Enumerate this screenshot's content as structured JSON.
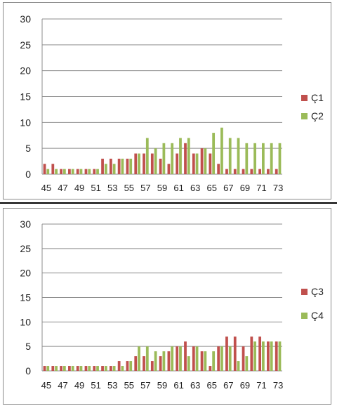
{
  "chart_data": [
    {
      "type": "bar",
      "x": [
        45,
        46,
        47,
        48,
        49,
        50,
        51,
        52,
        53,
        54,
        55,
        56,
        57,
        58,
        59,
        60,
        61,
        62,
        63,
        64,
        65,
        66,
        67,
        68,
        69,
        70,
        71,
        72,
        73
      ],
      "xtick_labels": [
        "45",
        "47",
        "49",
        "51",
        "53",
        "55",
        "57",
        "59",
        "61",
        "63",
        "65",
        "67",
        "69",
        "71",
        "73"
      ],
      "ylim": [
        0,
        30
      ],
      "yticks": [
        0,
        5,
        10,
        15,
        20,
        25,
        30
      ],
      "grid": true,
      "legend_position": "right",
      "series": [
        {
          "name": "Ç1",
          "color": "#c0504d",
          "values": [
            2,
            2,
            1,
            1,
            1,
            1,
            1,
            3,
            3,
            3,
            3,
            4,
            4,
            4,
            3,
            2,
            4,
            6,
            4,
            5,
            4,
            2,
            1,
            1,
            1,
            1,
            1,
            1,
            1
          ]
        },
        {
          "name": "Ç2",
          "color": "#9bbb59",
          "values": [
            1,
            1,
            1,
            1,
            1,
            1,
            1,
            2,
            2,
            3,
            3,
            4,
            7,
            5,
            6,
            6,
            7,
            7,
            4,
            5,
            8,
            9,
            7,
            7,
            6,
            6,
            6,
            6,
            6
          ]
        }
      ]
    },
    {
      "type": "bar",
      "x": [
        45,
        46,
        47,
        48,
        49,
        50,
        51,
        52,
        53,
        54,
        55,
        56,
        57,
        58,
        59,
        60,
        61,
        62,
        63,
        64,
        65,
        66,
        67,
        68,
        69,
        70,
        71,
        72,
        73
      ],
      "xtick_labels": [
        "45",
        "47",
        "49",
        "51",
        "53",
        "55",
        "57",
        "59",
        "61",
        "63",
        "65",
        "67",
        "69",
        "71",
        "73"
      ],
      "ylim": [
        0,
        30
      ],
      "yticks": [
        0,
        5,
        10,
        15,
        20,
        25,
        30
      ],
      "grid": true,
      "legend_position": "right",
      "series": [
        {
          "name": "Ç3",
          "color": "#c0504d",
          "values": [
            1,
            1,
            1,
            1,
            1,
            1,
            1,
            1,
            1,
            2,
            2,
            3,
            3,
            2,
            3,
            4,
            5,
            6,
            5,
            4,
            1,
            5,
            7,
            7,
            5,
            7,
            7,
            6,
            6
          ]
        },
        {
          "name": "Ç4",
          "color": "#9bbb59",
          "values": [
            1,
            1,
            1,
            1,
            1,
            1,
            1,
            1,
            1,
            1,
            2,
            5,
            5,
            4,
            4,
            5,
            5,
            3,
            5,
            4,
            4,
            5,
            5,
            2,
            3,
            6,
            6,
            6,
            6
          ]
        }
      ]
    }
  ]
}
